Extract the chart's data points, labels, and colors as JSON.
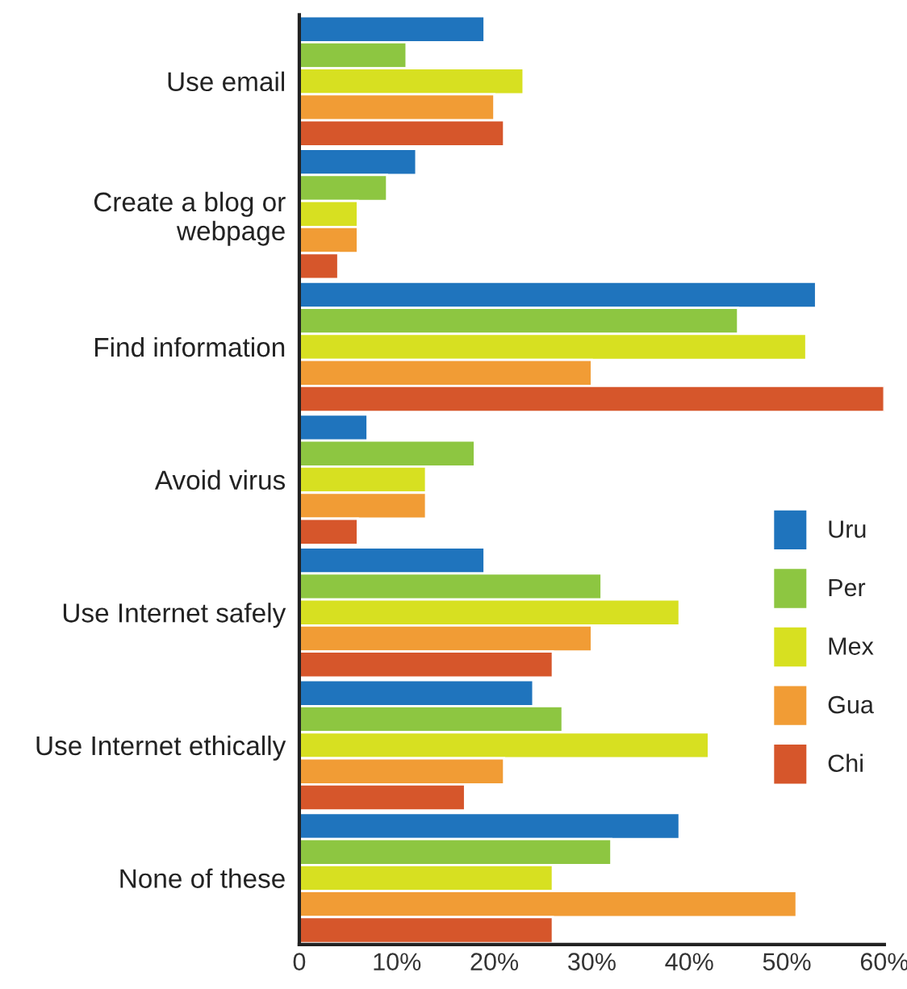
{
  "chart_data": {
    "type": "bar",
    "orientation": "horizontal",
    "categories": [
      "Use email",
      "Create a blog or\nwebpage",
      "Find information",
      "Avoid virus",
      "Use Internet safely",
      "Use Internet ethically",
      "None of these"
    ],
    "series": [
      {
        "name": "Uru",
        "color": "#1f74bd",
        "values": [
          19,
          12,
          53,
          7,
          19,
          24,
          39
        ]
      },
      {
        "name": "Per",
        "color": "#8dc641",
        "values": [
          11,
          9,
          45,
          18,
          31,
          27,
          32
        ]
      },
      {
        "name": "Mex",
        "color": "#d7e021",
        "values": [
          23,
          6,
          52,
          13,
          39,
          42,
          26
        ]
      },
      {
        "name": "Gua",
        "color": "#f19c35",
        "values": [
          20,
          6,
          30,
          13,
          30,
          21,
          51
        ]
      },
      {
        "name": "Chi",
        "color": "#d6562b",
        "values": [
          21,
          4,
          60,
          6,
          26,
          17,
          26
        ]
      }
    ],
    "xlim": [
      0,
      60
    ],
    "xticks": [
      0,
      {
        "value": 10,
        "label": "10%"
      },
      {
        "value": 20,
        "label": "20%"
      },
      {
        "value": 30,
        "label": "30%"
      },
      {
        "value": 40,
        "label": "40%"
      },
      {
        "value": 50,
        "label": "50%"
      },
      {
        "value": 60,
        "label": "60%"
      }
    ],
    "grid": false,
    "legend": "right"
  }
}
